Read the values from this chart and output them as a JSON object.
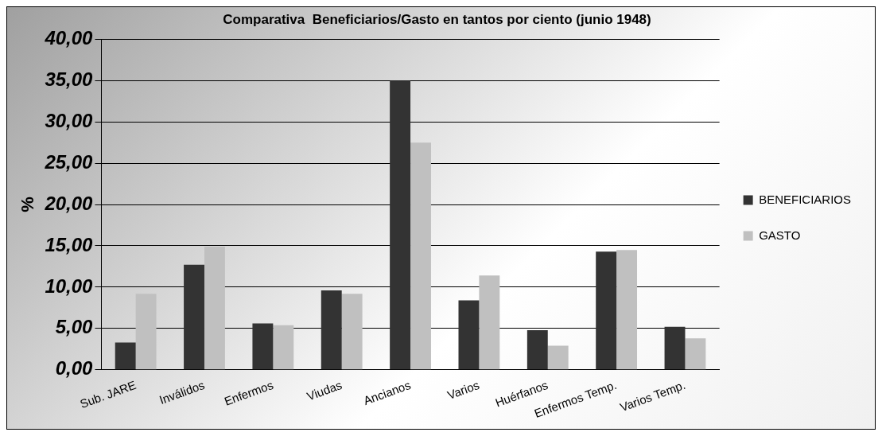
{
  "chart_data": {
    "type": "bar",
    "title": "Comparativa  Beneficiarios/Gasto en tantos por ciento (junio 1948)",
    "ylabel": "%",
    "categories": [
      "Sub. JARE",
      "Inválidos",
      "Enfermos",
      "Viudas",
      "Ancianos",
      "Varios",
      "Huérfanos",
      "Enfermos Temp.",
      "Varios Temp."
    ],
    "series": [
      {
        "name": "BENEFICIARIOS",
        "color": "#333333",
        "values": [
          3.3,
          12.7,
          5.6,
          9.6,
          35.0,
          8.4,
          4.8,
          14.3,
          5.2
        ]
      },
      {
        "name": "GASTO",
        "color": "#c0c0c0",
        "values": [
          9.2,
          14.9,
          5.4,
          9.2,
          27.5,
          11.4,
          2.9,
          14.5,
          3.8
        ]
      }
    ],
    "ylim": [
      0,
      40
    ],
    "yticks": [
      {
        "value": 0,
        "label": "0,00"
      },
      {
        "value": 5,
        "label": "5,00"
      },
      {
        "value": 10,
        "label": "10,00"
      },
      {
        "value": 15,
        "label": "15,00"
      },
      {
        "value": 20,
        "label": "20,00"
      },
      {
        "value": 25,
        "label": "25,00"
      },
      {
        "value": 30,
        "label": "30,00"
      },
      {
        "value": 35,
        "label": "35,00"
      },
      {
        "value": 40,
        "label": "40,00"
      }
    ],
    "grid": "y",
    "legend": "right"
  }
}
